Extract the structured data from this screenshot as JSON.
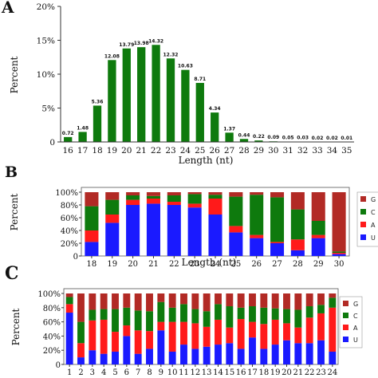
{
  "chart_data": [
    {
      "panel_label": "A",
      "type": "bar",
      "categories": [
        "16",
        "17",
        "18",
        "19",
        "20",
        "21",
        "22",
        "23",
        "24",
        "25",
        "26",
        "27",
        "28",
        "29",
        "30",
        "31",
        "32",
        "33",
        "34",
        "35"
      ],
      "values": [
        0.72,
        1.48,
        5.36,
        12.08,
        13.79,
        13.98,
        14.32,
        12.32,
        10.63,
        8.71,
        4.34,
        1.37,
        0.44,
        0.22,
        0.09,
        0.05,
        0.03,
        0.02,
        0.02,
        0.01
      ],
      "data_labels": [
        "0.72",
        "1.48",
        "5.36",
        "12.08",
        "13.79",
        "13.98",
        "14.32",
        "12.32",
        "10.63",
        "8.71",
        "4.34",
        "1.37",
        "0.44",
        "0.22",
        "0.09",
        "0.05",
        "0.03",
        "0.02",
        "0.02",
        "0.01"
      ],
      "xlabel": "Length (nt)",
      "ylabel": "Percent",
      "ylim": [
        0,
        20
      ],
      "yticks": [
        "0",
        "5%",
        "10%",
        "15%",
        "20%"
      ],
      "color": "#0e7a0d"
    },
    {
      "panel_label": "B",
      "type": "bar",
      "stacked": true,
      "categories": [
        "18",
        "19",
        "20",
        "21",
        "22",
        "23",
        "24",
        "25",
        "26",
        "27",
        "28",
        "29",
        "30"
      ],
      "series": [
        {
          "name": "U",
          "color": "#1a1aff",
          "values": [
            22,
            52,
            80,
            82,
            80,
            76,
            65,
            37,
            28,
            20,
            9,
            28,
            3
          ]
        },
        {
          "name": "A",
          "color": "#ff1a1a",
          "values": [
            18,
            13,
            8,
            8,
            5,
            6,
            25,
            10,
            5,
            2,
            17,
            5,
            2
          ]
        },
        {
          "name": "C",
          "color": "#0e7a0d",
          "values": [
            38,
            23,
            7,
            4,
            10,
            15,
            6,
            46,
            63,
            70,
            47,
            22,
            2
          ]
        },
        {
          "name": "G",
          "color": "#b22a25",
          "values": [
            22,
            12,
            5,
            6,
            5,
            3,
            4,
            7,
            4,
            8,
            27,
            45,
            93
          ]
        }
      ],
      "xlabel": "Length (nt)",
      "ylabel": "Percent",
      "ylim": [
        0,
        100
      ],
      "yticks": [
        "0",
        "20%",
        "40%",
        "60%",
        "80%",
        "100%"
      ],
      "legend_position": "right"
    },
    {
      "panel_label": "C",
      "type": "bar",
      "stacked": true,
      "categories": [
        "1",
        "2",
        "3",
        "4",
        "5",
        "6",
        "7",
        "8",
        "9",
        "10",
        "11",
        "12",
        "13",
        "14",
        "15",
        "16",
        "17",
        "18",
        "19",
        "20",
        "21",
        "22",
        "23",
        "24"
      ],
      "series": [
        {
          "name": "U",
          "color": "#1a1aff",
          "values": [
            73,
            10,
            20,
            15,
            18,
            40,
            15,
            22,
            48,
            18,
            28,
            22,
            25,
            28,
            30,
            22,
            38,
            22,
            28,
            34,
            30,
            30,
            34,
            18
          ]
        },
        {
          "name": "A",
          "color": "#ff1a1a",
          "values": [
            12,
            20,
            42,
            48,
            28,
            15,
            33,
            25,
            12,
            42,
            32,
            36,
            28,
            35,
            22,
            42,
            22,
            35,
            35,
            24,
            22,
            36,
            38,
            62
          ]
        },
        {
          "name": "C",
          "color": "#0e7a0d",
          "values": [
            10,
            30,
            15,
            15,
            32,
            25,
            28,
            28,
            28,
            20,
            25,
            20,
            22,
            22,
            30,
            16,
            22,
            23,
            16,
            20,
            25,
            16,
            12,
            14
          ]
        },
        {
          "name": "G",
          "color": "#b22a25",
          "values": [
            5,
            40,
            23,
            22,
            22,
            20,
            24,
            25,
            12,
            20,
            15,
            22,
            25,
            15,
            18,
            20,
            18,
            20,
            21,
            22,
            23,
            18,
            16,
            6
          ]
        }
      ],
      "ylabel": "Percent",
      "ylim": [
        0,
        100
      ],
      "yticks": [
        "0",
        "20%",
        "40%",
        "60%",
        "80%",
        "100%"
      ],
      "legend_position": "right"
    }
  ]
}
